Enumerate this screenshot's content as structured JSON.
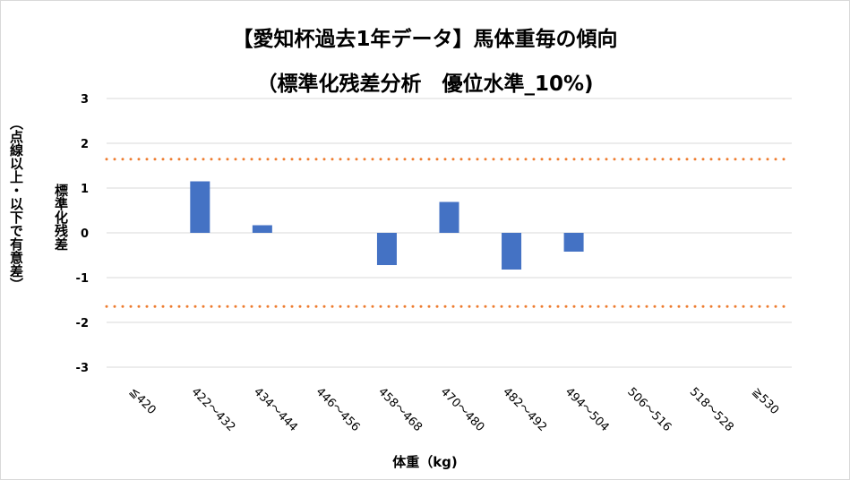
{
  "chart_data": {
    "type": "bar",
    "title": "【愛知杯過去1年データ】馬体重毎の傾向",
    "subtitle": "（標準化残差分析　優位水準_10%)",
    "xlabel": "体重（kg)",
    "ylabel_line1": "標準化残差",
    "ylabel_line2": "（点線以上・以下で有意差）",
    "categories": [
      "≦420",
      "422～432",
      "434～444",
      "446～456",
      "458～468",
      "470～480",
      "482～492",
      "494～504",
      "506～516",
      "518～528",
      "≧530"
    ],
    "values": [
      null,
      1.15,
      0.17,
      null,
      -0.72,
      0.69,
      -0.82,
      -0.42,
      null,
      null,
      null
    ],
    "ylim": [
      -3,
      3
    ],
    "yticks": [
      3,
      2,
      1,
      0,
      -1,
      -2,
      -3
    ],
    "threshold_lines": [
      1.645,
      -1.645
    ],
    "grid": true,
    "legend": "none",
    "colors": {
      "bar": "#4472c4",
      "threshold": "#ed7d31",
      "grid": "#d9d9d9"
    }
  }
}
